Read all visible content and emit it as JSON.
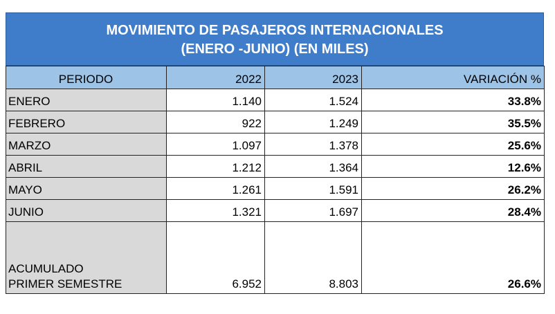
{
  "header": {
    "title": [
      "MOVIMIENTO DE PASAJEROS INTERNACIONALES",
      "(ENERO -JUNIO) (EN MILES)"
    ]
  },
  "table": {
    "columns": [
      "PERIODO",
      "2022",
      "2023",
      "VARIACIÓN %"
    ],
    "rows": [
      [
        "ENERO",
        "1.140",
        "1.524",
        "33.8%"
      ],
      [
        "FEBRERO",
        "922",
        "1.249",
        "35.5%"
      ],
      [
        "MARZO",
        "1.097",
        "1.378",
        "25.6%"
      ],
      [
        "ABRIL",
        "1.212",
        "1.364",
        "12.6%"
      ],
      [
        "MAYO",
        "1.261",
        "1.591",
        "26.2%"
      ],
      [
        "JUNIO",
        "1.321",
        "1.697",
        "28.4%"
      ],
      [
        "ACUMULADO\nPRIMER SEMESTRE",
        "6.952",
        "8.803",
        "26.6%"
      ]
    ]
  }
}
